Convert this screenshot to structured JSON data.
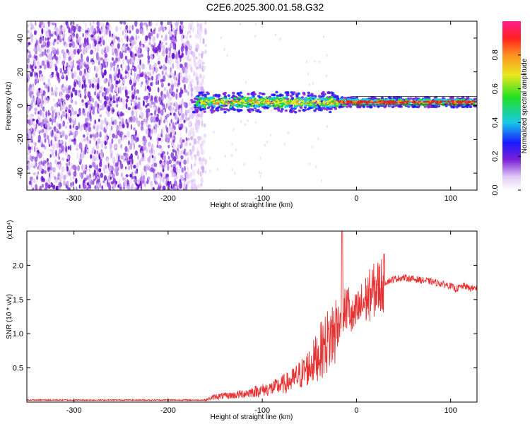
{
  "title": "C2E6.2025.300.01.58.G32",
  "colors": {
    "snr_line": "#e83030",
    "spec_band_low": "#7a1fd6",
    "spec_band_mid": "#18c8e8",
    "spec_band_high": "#e82020"
  },
  "chart_data": [
    {
      "type": "heatmap",
      "xlabel": "Height of straight line (km)",
      "ylabel": "Frequency (Hz)",
      "xlim": [
        -350,
        128
      ],
      "ylim": [
        -50,
        50
      ],
      "x_ticks": [
        -300,
        -200,
        -100,
        0,
        100
      ],
      "y_ticks": [
        -40,
        -20,
        0,
        20,
        40
      ],
      "colorbar": {
        "label": "Normalized spectral amplitude",
        "range": [
          0,
          1
        ],
        "ticks": [
          0.0,
          0.2,
          0.4,
          0.6,
          0.8
        ]
      },
      "signal_band": {
        "x_start": -175,
        "x_end": 128,
        "center_freq_hz": 2
      },
      "noise_region": {
        "x_start": -350,
        "x_end": -160
      }
    },
    {
      "type": "line",
      "xlabel": "Height of straight line (km)",
      "ylabel": "SNR (10 * v/v)",
      "y_multiplier": "(x10⁴)",
      "xlim": [
        -350,
        128
      ],
      "ylim": [
        0,
        2.5
      ],
      "x_ticks": [
        -300,
        -200,
        -100,
        0,
        100
      ],
      "y_ticks": [
        0.5,
        1.0,
        1.5,
        2.0
      ],
      "y_tick_labels": [
        "0.5",
        "1.0",
        "1.5",
        "2.0"
      ],
      "series": [
        {
          "x": [
            -350,
            -300,
            -250,
            -200,
            -160,
            -150,
            -130,
            -110,
            -90,
            -70,
            -55,
            -45,
            -38,
            -30,
            -25,
            -20,
            -17,
            -15,
            -12,
            -8,
            -5,
            0,
            10,
            20,
            30,
            40,
            50,
            60,
            70,
            80,
            90,
            100,
            105,
            110,
            115,
            120,
            128
          ],
          "y": [
            0.03,
            0.03,
            0.03,
            0.03,
            0.03,
            0.08,
            0.1,
            0.15,
            0.2,
            0.3,
            0.45,
            0.6,
            0.75,
            0.9,
            1.0,
            1.1,
            1.3,
            1.25,
            1.35,
            1.4,
            1.2,
            1.3,
            1.5,
            1.65,
            1.75,
            1.8,
            1.82,
            1.8,
            1.78,
            1.76,
            1.73,
            1.7,
            1.65,
            1.68,
            1.7,
            1.66,
            1.67
          ]
        }
      ]
    }
  ]
}
